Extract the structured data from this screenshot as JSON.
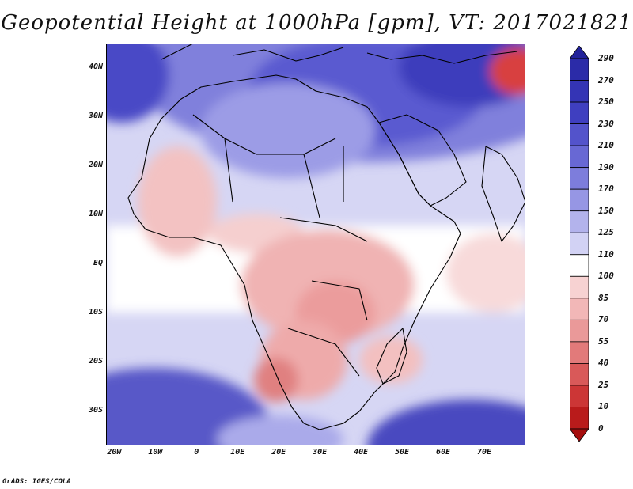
{
  "title": "Geopotential Height at 1000hPa [gpm], VT: 2017021821",
  "credit": "GrADS: IGES/COLA",
  "lat_ticks": [
    "40N",
    "30N",
    "20N",
    "10N",
    "EQ",
    "10S",
    "20S",
    "30S"
  ],
  "lon_ticks": [
    "20W",
    "10W",
    "0",
    "10E",
    "20E",
    "30E",
    "40E",
    "50E",
    "60E",
    "70E"
  ],
  "colorbar": {
    "labels": [
      "290",
      "270",
      "250",
      "230",
      "210",
      "190",
      "170",
      "150",
      "125",
      "110",
      "100",
      "85",
      "70",
      "55",
      "40",
      "25",
      "10",
      "0"
    ],
    "colors": [
      "#22229a",
      "#2b2ba8",
      "#3434b5",
      "#3f3fc0",
      "#5353cb",
      "#6868d4",
      "#7d7ddc",
      "#9696e4",
      "#b3b3ec",
      "#d2d2f4",
      "#ffffff",
      "#f7d2d2",
      "#f2b7b7",
      "#ea9999",
      "#e27a7a",
      "#d95959",
      "#cc3636",
      "#b91b1b",
      "#a50e0e"
    ]
  },
  "chart_data": {
    "type": "heatmap",
    "title": "Geopotential Height at 1000hPa [gpm], VT: 2017021821",
    "variable": "Geopotential Height",
    "level": "1000hPa",
    "units": "gpm",
    "valid_time": "2017021821",
    "lon_range": [
      -22,
      80
    ],
    "lat_range": [
      -37,
      45
    ],
    "levels": [
      0,
      10,
      25,
      40,
      55,
      70,
      85,
      100,
      110,
      125,
      150,
      170,
      190,
      210,
      230,
      250,
      270,
      290
    ]
  }
}
